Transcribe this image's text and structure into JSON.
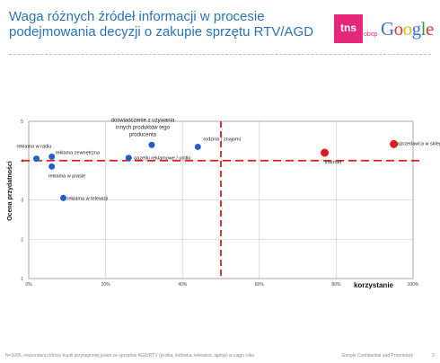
{
  "slide": {
    "title_line1": "Waga różnych źródeł informacji w procesie",
    "title_line2": "podejmowania decyzji o zakupie sprzętu RTV/AGD",
    "brand_tns": "tns",
    "brand_obop": "obop",
    "brand_google_letters": [
      {
        "char": "G",
        "color": "#3b6fd4"
      },
      {
        "char": "o",
        "color": "#d63a2f"
      },
      {
        "char": "o",
        "color": "#e8b417"
      },
      {
        "char": "g",
        "color": "#3b6fd4"
      },
      {
        "char": "l",
        "color": "#2f9e44"
      },
      {
        "char": "e",
        "color": "#d63a2f"
      }
    ],
    "footer_left": "N=1005, respondenci którzy kupili przynajmniej jeden ze sprzętów AGD/RTV (pralka, lodówka, telewizor, laptop) w ciągu roku",
    "footer_right": "Google Confidential and Proprietary",
    "page_number": "2"
  },
  "chart_data": {
    "type": "scatter",
    "xlabel": "korzystanie",
    "ylabel": "Ocena przydatności",
    "xlim": [
      0,
      100
    ],
    "ylim": [
      1,
      5
    ],
    "x_ticks": [
      "0%",
      "20%",
      "40%",
      "60%",
      "80%",
      "100%"
    ],
    "y_ticks": [
      "1",
      "2",
      "3",
      "4",
      "5"
    ],
    "reference_lines": {
      "x": 50,
      "y": 4
    },
    "colors": {
      "offline": "#1f5fc9",
      "online": "#e01b1b",
      "reference": "#e01b1b"
    },
    "points": [
      {
        "label": "reklama w radiu",
        "x": 2,
        "y": 4.05,
        "group": "offline"
      },
      {
        "label": "reklama zewnętrzna",
        "x": 6,
        "y": 4.1,
        "group": "offline"
      },
      {
        "label": "reklama w prasie",
        "x": 6,
        "y": 3.85,
        "group": "offline"
      },
      {
        "label": "reklama w telewizji",
        "x": 9,
        "y": 3.05,
        "group": "offline"
      },
      {
        "label": "gazetki reklamowe / ulotki",
        "x": 26,
        "y": 4.07,
        "group": "offline"
      },
      {
        "label": "doświadczenie z używania innych produktów tego producenta",
        "x": 32,
        "y": 4.4,
        "group": "offline"
      },
      {
        "label": "rodzina / znajomi",
        "x": 44,
        "y": 4.35,
        "group": "offline"
      },
      {
        "label": "Internet",
        "x": 77,
        "y": 4.2,
        "group": "online"
      },
      {
        "label": "sprzedawca w sklepie",
        "x": 95,
        "y": 4.42,
        "group": "online"
      }
    ]
  }
}
